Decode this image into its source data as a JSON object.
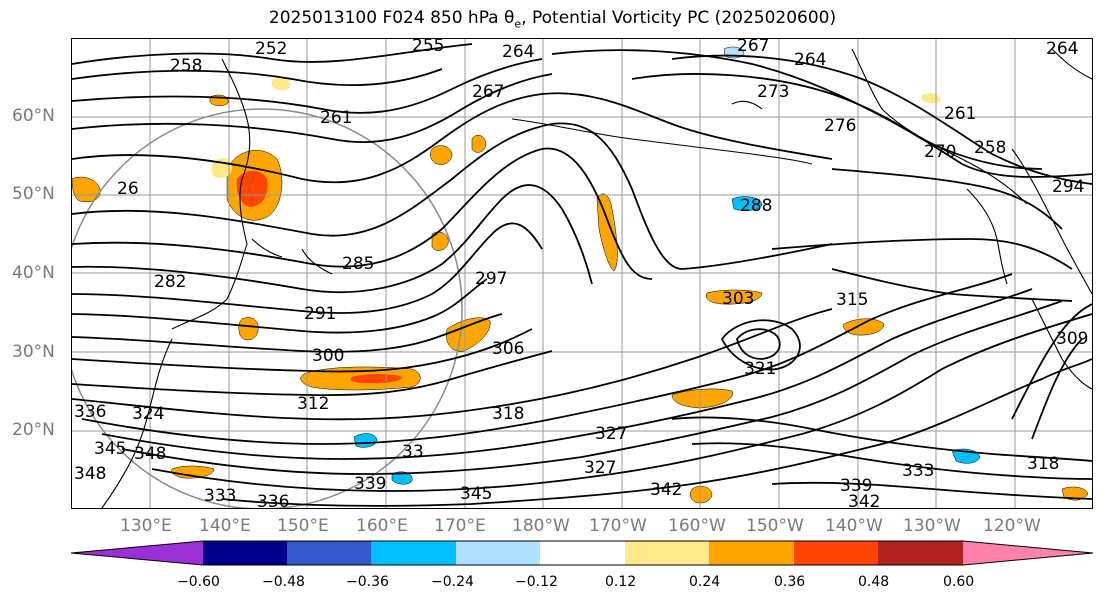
{
  "title": {
    "prefix": "2025013100 F024 850 hPa θ",
    "subscript": "e",
    "suffix": ", Potential Vorticity PC (2025020600)"
  },
  "latitude_labels": [
    "60°N",
    "50°N",
    "40°N",
    "30°N",
    "20°N"
  ],
  "longitude_labels": [
    "130°E",
    "140°E",
    "150°E",
    "160°E",
    "170°E",
    "180°W",
    "170°W",
    "160°W",
    "150°W",
    "140°W",
    "130°W",
    "120°W"
  ],
  "contour_labels": [
    "252",
    "258",
    "255",
    "264",
    "267",
    "264",
    "267",
    "264",
    "261",
    "261",
    "273",
    "276",
    "270",
    "258",
    "294",
    "26",
    "282",
    "288",
    "285",
    "297",
    "291",
    "306",
    "300",
    "312",
    "303",
    "315",
    "321",
    "324",
    "318",
    "336",
    "327",
    "345",
    "348",
    "33",
    "327",
    "333",
    "318",
    "339",
    "342",
    "342",
    "333",
    "336",
    "339",
    "345",
    "348",
    "309"
  ],
  "colorbar": {
    "colors": [
      "#9b30d9",
      "#00008b",
      "#3458cc",
      "#00bfff",
      "#b0e2ff",
      "#ffffff",
      "#ffe98a",
      "#ffa500",
      "#ff4500",
      "#b22222",
      "#ff82ab"
    ],
    "outline_color": "#000000",
    "tick_labels": [
      "−0.60",
      "−0.48",
      "−0.36",
      "−0.24",
      "−0.12",
      "0.12",
      "0.24",
      "0.36",
      "0.48",
      "0.60"
    ]
  },
  "colors": {
    "contour": "#000000",
    "coastline": "#000000",
    "gridline": "#9a9a9a",
    "axis_label": "#7a7a7a"
  }
}
